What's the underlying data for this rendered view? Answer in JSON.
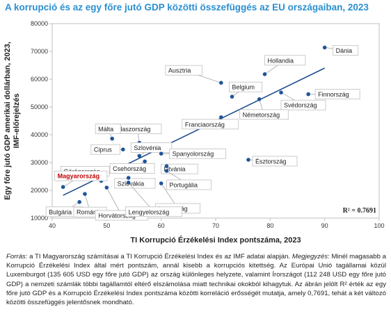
{
  "chart_data": {
    "type": "scatter",
    "title": "A korrupció és az egy főre jutó GDP közötti összefüggés az EU országaiban, 2023",
    "xlabel": "TI Korrupció Érzékelési Index pontszáma, 2023",
    "ylabel": "Egy főre jutó GDP amerikai dollárban, 2023, IMF-előrejelzés",
    "xlim": [
      40,
      100
    ],
    "ylim": [
      10000,
      80000
    ],
    "xticks": [
      "40",
      "50",
      "60",
      "70",
      "80",
      "90",
      "100"
    ],
    "yticks": [
      "10000",
      "20000",
      "30000",
      "40000",
      "50000",
      "60000",
      "70000",
      "80000"
    ],
    "grid": false,
    "annotation": "R² = 0.7691",
    "points": [
      {
        "label": "Dánia",
        "x": 90,
        "y": 71400
      },
      {
        "label": "Hollandia",
        "x": 79,
        "y": 61800
      },
      {
        "label": "Ausztria",
        "x": 71,
        "y": 58700
      },
      {
        "label": "Belgium",
        "x": 73,
        "y": 53700
      },
      {
        "label": "Finnország",
        "x": 87,
        "y": 54600
      },
      {
        "label": "Franciaország",
        "x": 71,
        "y": 46300
      },
      {
        "label": "Svédország",
        "x": 82,
        "y": 55200
      },
      {
        "label": "Németország",
        "x": 78,
        "y": 52800
      },
      {
        "label": "Olaszország",
        "x": 56,
        "y": 37100
      },
      {
        "label": "Málta",
        "x": 51,
        "y": 38600
      },
      {
        "label": "Szlovénia",
        "x": 56,
        "y": 32400
      },
      {
        "label": "Ciprus",
        "x": 53,
        "y": 34700
      },
      {
        "label": "Spanyolország",
        "x": 60,
        "y": 33200
      },
      {
        "label": "Észtország",
        "x": 76,
        "y": 31000
      },
      {
        "label": "Görögország",
        "x": 49,
        "y": 23400
      },
      {
        "label": "Csehország",
        "x": 57,
        "y": 30400
      },
      {
        "label": "Litvánia",
        "x": 61,
        "y": 28700
      },
      {
        "label": "Magyarország",
        "x": 42,
        "y": 21200,
        "highlight": true
      },
      {
        "label": "Portugália",
        "x": 61,
        "y": 27000
      },
      {
        "label": "Szlovákia",
        "x": 54,
        "y": 24500
      },
      {
        "label": "Lettország",
        "x": 60,
        "y": 22500
      },
      {
        "label": "Bulgária",
        "x": 45,
        "y": 15800
      },
      {
        "label": "Románia",
        "x": 46,
        "y": 18700
      },
      {
        "label": "Horvátország",
        "x": 50,
        "y": 21000
      },
      {
        "label": "Lengyelország",
        "x": 54,
        "y": 22800
      }
    ],
    "trendline": {
      "x": [
        42,
        90
      ],
      "y": [
        18200,
        64000
      ]
    },
    "colors": {
      "point": "#1f5597",
      "trend": "#1f4e8c",
      "highlight_label": "#c00000",
      "title": "#2a8fd0",
      "axis_text": "#333333"
    }
  },
  "footnote": {
    "source_label": "Forrás",
    "source_text": ": a TI Magyarország számításai a TI Korrupció Érzékelési Index és az IMF adatai alapján. ",
    "note_label": "Megjegyzés",
    "note_text": ": Minél magasabb a Korrupció Érzékelési Index által mért pontszám, annál kisebb a korrupciós kitettség. Az Európai Unió tagállamai közül Luxemburgot (135 605 USD egy főre jutó GDP) az ország különleges helyzete, valamint Írországot (112 248 USD egy főre jutó GDP) a nemzeti számlák többi tagállamtól eltérő elszámolása miatt technikai okokból kihagytuk. Az ábrán jelölt R² érték az egy főre jutó GDP és a Korrupció Érzékelési Index pontszáma közötti korreláció erősségét mutatja, amely 0,7691, tehát a két változó közötti összefüggés jelentősnek mondható."
  }
}
